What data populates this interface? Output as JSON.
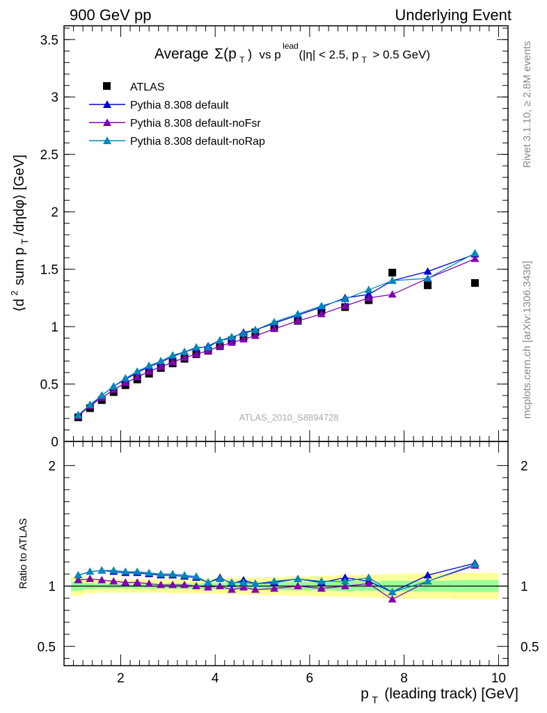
{
  "header": {
    "left": "900 GeV pp",
    "right": "Underlying Event"
  },
  "side": {
    "rivet": "Rivet 3.1.10, ≥ 2.8M events",
    "mcplots": "mcplots.cern.ch [arXiv:1306.3436]"
  },
  "colors": {
    "atlas": "#000000",
    "default": "#0000cc",
    "noFsr": "#8000b0",
    "noRap": "#0088bb",
    "band_yellow": "#ffff99",
    "band_green": "#99ff99"
  },
  "chart_data": [
    {
      "type": "scatter",
      "title": "Average Σ(pT) vs pT lead (|η| < 2.5, pT > 0.5 GeV)",
      "title_parts": {
        "average": "Average",
        "sigma": "Σ(p",
        "t": "T",
        "close": ")",
        "vs": "vs p",
        "lead": "lead",
        "cut1": "(|η| < 2.5, p",
        "cut2": "> 0.5 GeV)"
      },
      "ylabel": "⟨d² sum pT/dηdφ⟩ [GeV]",
      "ylabel_parts": {
        "a": "⟨d",
        "sup": "2",
        "b": "sum p",
        "sub": "T",
        "c": "/dηdφ⟩ [GeV]"
      },
      "xlim": [
        0.8,
        10.2
      ],
      "ylim": [
        0,
        3.62
      ],
      "y_ticks": [
        0,
        0.5,
        1,
        1.5,
        2,
        2.5,
        3,
        3.5
      ],
      "y_tick_labels": [
        "0",
        "0.5",
        "1",
        "1.5",
        "2",
        "2.5",
        "3",
        "3.5"
      ],
      "analysis_label": "ATLAS_2010_S8894728",
      "legend_position": "top-left",
      "x": [
        1.1,
        1.35,
        1.6,
        1.85,
        2.1,
        2.35,
        2.6,
        2.85,
        3.1,
        3.35,
        3.6,
        3.85,
        4.1,
        4.35,
        4.6,
        4.85,
        5.25,
        5.75,
        6.25,
        6.75,
        7.25,
        7.75,
        8.5,
        9.5
      ],
      "series": [
        {
          "name": "ATLAS",
          "key": "atlas",
          "marker": "square",
          "values": [
            0.21,
            0.29,
            0.36,
            0.43,
            0.49,
            0.54,
            0.59,
            0.64,
            0.68,
            0.72,
            0.76,
            0.79,
            0.83,
            0.88,
            0.91,
            0.95,
            1.0,
            1.05,
            1.14,
            1.17,
            1.23,
            1.47,
            1.36,
            1.38
          ]
        },
        {
          "name": "Pythia 8.308 default",
          "key": "default",
          "marker": "triangle",
          "values": [
            0.23,
            0.31,
            0.4,
            0.48,
            0.54,
            0.6,
            0.65,
            0.69,
            0.74,
            0.78,
            0.81,
            0.83,
            0.88,
            0.9,
            0.95,
            0.97,
            1.03,
            1.1,
            1.17,
            1.25,
            1.28,
            1.4,
            1.48,
            1.63
          ]
        },
        {
          "name": "Pythia 8.308 default-noFsr",
          "key": "noFsr",
          "marker": "triangle",
          "values": [
            0.22,
            0.31,
            0.38,
            0.45,
            0.51,
            0.56,
            0.61,
            0.65,
            0.69,
            0.73,
            0.76,
            0.79,
            0.83,
            0.86,
            0.89,
            0.92,
            0.98,
            1.05,
            1.11,
            1.18,
            1.25,
            1.28,
            1.42,
            1.59
          ]
        },
        {
          "name": "Pythia 8.308 default-noRap",
          "key": "noRap",
          "marker": "triangle",
          "values": [
            0.23,
            0.32,
            0.4,
            0.48,
            0.55,
            0.61,
            0.66,
            0.7,
            0.75,
            0.78,
            0.82,
            0.82,
            0.88,
            0.91,
            0.94,
            0.97,
            1.04,
            1.11,
            1.18,
            1.24,
            1.32,
            1.4,
            1.42,
            1.64
          ]
        }
      ]
    },
    {
      "type": "line",
      "xlabel": "pT (leading track) [GeV]",
      "xlabel_parts": {
        "p": "p",
        "t": "T",
        "rest": "(leading track) [GeV]"
      },
      "ylabel": "Ratio to ATLAS",
      "xlim": [
        0.8,
        10.2
      ],
      "ylim": [
        0.34,
        2.2
      ],
      "x_ticks": [
        2,
        4,
        6,
        8,
        10
      ],
      "x_tick_labels": [
        "2",
        "4",
        "6",
        "8",
        "10"
      ],
      "y_ticks": [
        0.5,
        1,
        2
      ],
      "y_tick_labels": [
        "0.5",
        "1",
        "2"
      ],
      "x": [
        1.1,
        1.35,
        1.6,
        1.85,
        2.1,
        2.35,
        2.6,
        2.85,
        3.1,
        3.35,
        3.6,
        3.85,
        4.1,
        4.35,
        4.6,
        4.85,
        5.25,
        5.75,
        6.25,
        6.75,
        7.25,
        7.75,
        8.5,
        9.5
      ],
      "bands": {
        "edges": [
          0.95,
          1.2,
          1.45,
          1.7,
          1.95,
          2.2,
          2.45,
          2.7,
          2.95,
          3.2,
          3.45,
          3.7,
          3.95,
          4.2,
          4.45,
          4.7,
          5.0,
          5.5,
          6.0,
          6.5,
          7.0,
          7.5,
          8.0,
          9.0,
          10.0
        ],
        "yellow": [
          0.08,
          0.06,
          0.055,
          0.055,
          0.055,
          0.055,
          0.055,
          0.055,
          0.06,
          0.06,
          0.06,
          0.06,
          0.065,
          0.065,
          0.07,
          0.07,
          0.075,
          0.08,
          0.085,
          0.09,
          0.095,
          0.1,
          0.105,
          0.11
        ],
        "green": [
          0.04,
          0.025,
          0.02,
          0.02,
          0.02,
          0.02,
          0.02,
          0.02,
          0.022,
          0.022,
          0.022,
          0.025,
          0.025,
          0.03,
          0.03,
          0.03,
          0.032,
          0.035,
          0.035,
          0.04,
          0.04,
          0.045,
          0.045,
          0.05
        ]
      },
      "series": [
        {
          "name": "Pythia 8.308 default",
          "key": "default",
          "values": [
            1.09,
            1.12,
            1.13,
            1.12,
            1.11,
            1.11,
            1.1,
            1.09,
            1.09,
            1.08,
            1.07,
            1.03,
            1.07,
            1.02,
            1.05,
            1.02,
            1.03,
            1.06,
            1.03,
            1.07,
            1.04,
            0.95,
            1.09,
            1.19
          ]
        },
        {
          "name": "Pythia 8.308 default-noFsr",
          "key": "noFsr",
          "values": [
            1.05,
            1.06,
            1.05,
            1.04,
            1.03,
            1.03,
            1.02,
            1.01,
            1.01,
            1.01,
            1.0,
            0.99,
            1.0,
            0.97,
            0.99,
            0.97,
            0.98,
            1.0,
            0.98,
            1.0,
            1.02,
            0.89,
            1.04,
            1.17
          ]
        },
        {
          "name": "Pythia 8.308 default-noRap",
          "key": "noRap",
          "values": [
            1.09,
            1.12,
            1.13,
            1.13,
            1.12,
            1.12,
            1.11,
            1.1,
            1.1,
            1.09,
            1.08,
            1.03,
            1.06,
            1.03,
            1.03,
            1.02,
            1.04,
            1.06,
            1.04,
            1.04,
            1.07,
            0.95,
            1.04,
            1.18
          ]
        }
      ]
    }
  ]
}
